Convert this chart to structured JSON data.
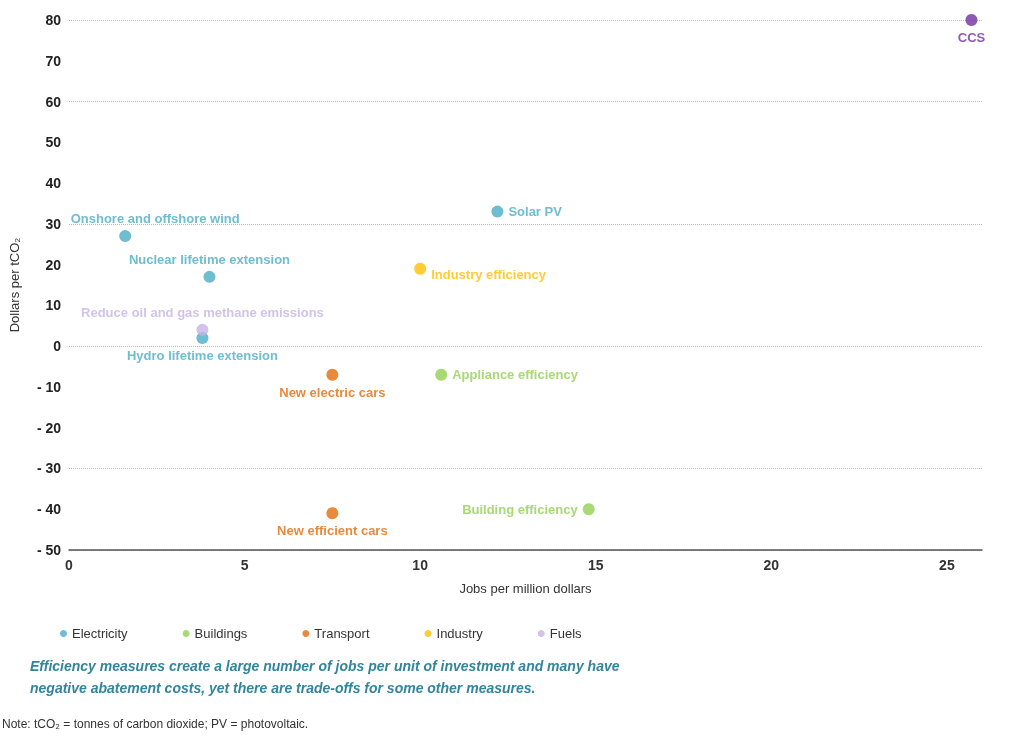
{
  "chart_data": {
    "type": "scatter",
    "xlabel": "Jobs per million dollars",
    "ylabel": "Dollars per tCO₂",
    "xlim": [
      0,
      26
    ],
    "xticks": [
      0,
      5,
      10,
      15,
      20,
      25
    ],
    "ylim": [
      -50,
      80
    ],
    "yticks": [
      {
        "value": -50,
        "label": "- 50"
      },
      {
        "value": -40,
        "label": "- 40"
      },
      {
        "value": -30,
        "label": "- 30"
      },
      {
        "value": -20,
        "label": "- 20"
      },
      {
        "value": -10,
        "label": "- 10"
      },
      0,
      10,
      20,
      30,
      40,
      50,
      60,
      70,
      80
    ],
    "grid": "y",
    "legend": "bottom left",
    "marker": "circle",
    "series": [
      {
        "name": "Electricity",
        "color": "#4bacc6",
        "x": [
          1.6,
          4.0,
          3.8,
          12.2
        ],
        "values": [
          27,
          17,
          2,
          33
        ]
      },
      {
        "name": "Buildings",
        "color": "#92d050",
        "x": [
          10.6,
          14.8
        ],
        "values": [
          -7,
          -40
        ]
      },
      {
        "name": "Transport",
        "color": "#e46c0a",
        "x": [
          7.5,
          7.5
        ],
        "values": [
          -7,
          -41
        ]
      },
      {
        "name": "Industry",
        "color": "#ffc000",
        "x": [
          10.0
        ],
        "values": [
          19
        ]
      },
      {
        "name": "Fuels",
        "color": "#c5b4e3",
        "x": [
          3.8
        ],
        "values": [
          4
        ]
      },
      {
        "color": "#7030a0",
        "x": [
          25.7
        ],
        "values": [
          80
        ]
      }
    ],
    "annotations": [
      {
        "text": "Onshore and offshore wind",
        "x": 1.6,
        "y": 27
      },
      {
        "text": "Nuclear lifetime extension",
        "x": 4.0,
        "y": 17
      },
      {
        "text": "Hydro lifetime extension",
        "x": 3.8,
        "y": 2
      },
      {
        "text": "Solar PV",
        "x": 12.2,
        "y": 33
      },
      {
        "text": "Appliance efficiency",
        "x": 10.6,
        "y": -7
      },
      {
        "text": "Building efficiency",
        "x": 14.8,
        "y": -40
      },
      {
        "text": "New electric cars",
        "x": 7.5,
        "y": -7
      },
      {
        "text": "New efficient cars",
        "x": 7.5,
        "y": -41
      },
      {
        "text": "Industry efficiency",
        "x": 10.0,
        "y": 19
      },
      {
        "text": "Reduce oil and gas methane emissions",
        "x": 3.8,
        "y": 4
      },
      {
        "text": "CCS",
        "x": 25.7,
        "y": 80
      },
      "Efficiency measures create a large number of jobs per unit of investment and many have negative abatement costs, yet there are trade-offs for some other measures.",
      "Note: tCO₂ = tonnes of carbon dioxide; PV = photovoltaic."
    ]
  }
}
